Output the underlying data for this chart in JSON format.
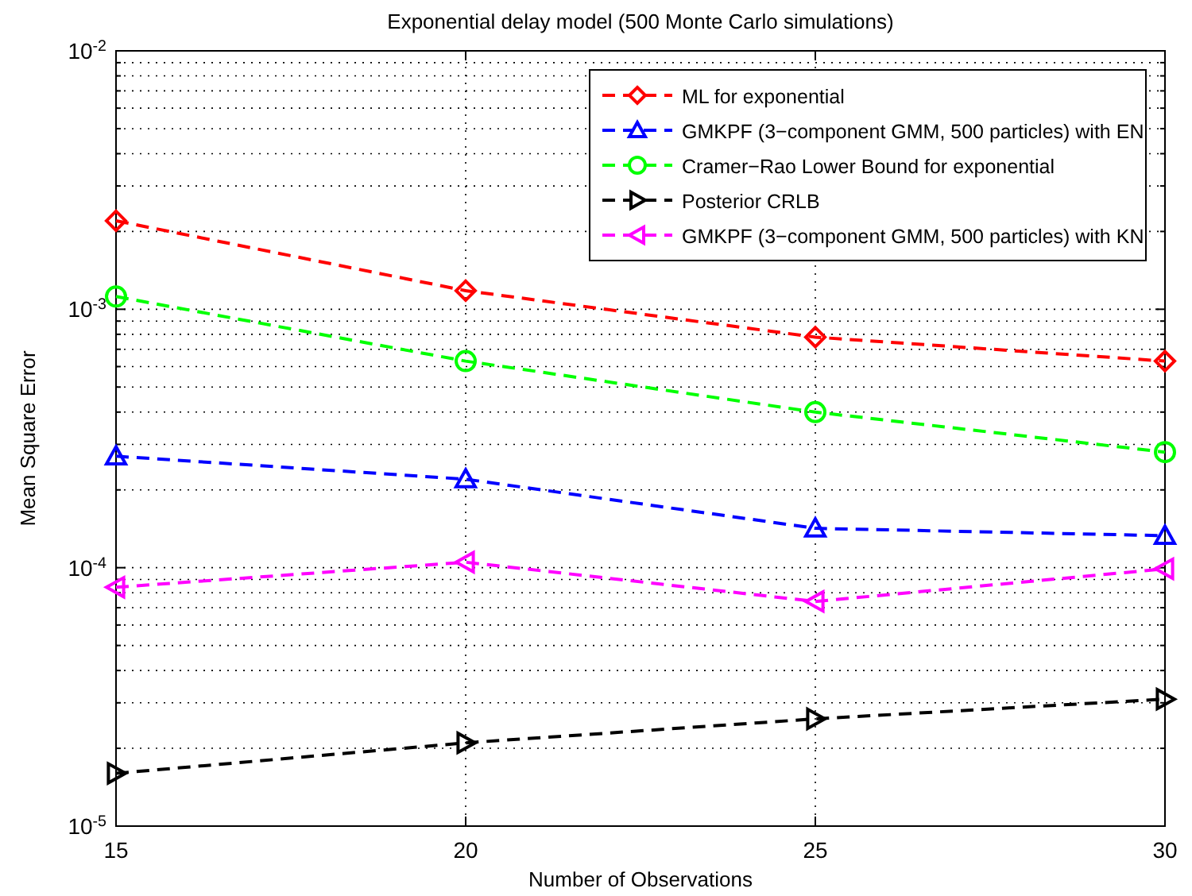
{
  "chart_data": {
    "type": "line",
    "title": "Exponential delay model (500 Monte Carlo simulations)",
    "xlabel": "Number of Observations",
    "ylabel": "Mean Square Error",
    "x": [
      15,
      20,
      25,
      30
    ],
    "series": [
      {
        "name": "ML for exponential",
        "color": "#ff0000",
        "marker": "diamond",
        "values": [
          0.0022,
          0.00118,
          0.00078,
          0.00063
        ]
      },
      {
        "name": "GMKPF (3−component GMM, 500 particles) with EN",
        "color": "#0000ff",
        "marker": "triangle",
        "values": [
          0.00027,
          0.00022,
          0.000142,
          0.000133
        ]
      },
      {
        "name": "Cramer−Rao Lower Bound for exponential",
        "color": "#00ff00",
        "marker": "circle",
        "values": [
          0.00112,
          0.00063,
          0.0004,
          0.00028
        ]
      },
      {
        "name": "Posterior CRLB",
        "color": "#000000",
        "marker": "triangle-right",
        "values": [
          1.6e-05,
          2.1e-05,
          2.6e-05,
          3.1e-05
        ]
      },
      {
        "name": "GMKPF (3−component GMM, 500 particles) with KN",
        "color": "#ff00ff",
        "marker": "triangle-left",
        "values": [
          8.4e-05,
          0.000105,
          7.4e-05,
          9.9e-05
        ]
      }
    ],
    "xlim": [
      15,
      30
    ],
    "xticks": [
      15,
      20,
      25,
      30
    ],
    "ylim": [
      1e-05,
      0.01
    ],
    "yticks": [
      {
        "value": 1e-05,
        "label": "10$^{-5}$"
      },
      {
        "value": 0.0001,
        "label": "10$^{-4}$"
      },
      {
        "value": 0.001,
        "label": "10$^{-3}$"
      },
      {
        "value": 0.01,
        "label": "10$^{-2}$"
      }
    ],
    "log": "y",
    "grid": true,
    "legend": "top right",
    "line_style": "dashed"
  }
}
